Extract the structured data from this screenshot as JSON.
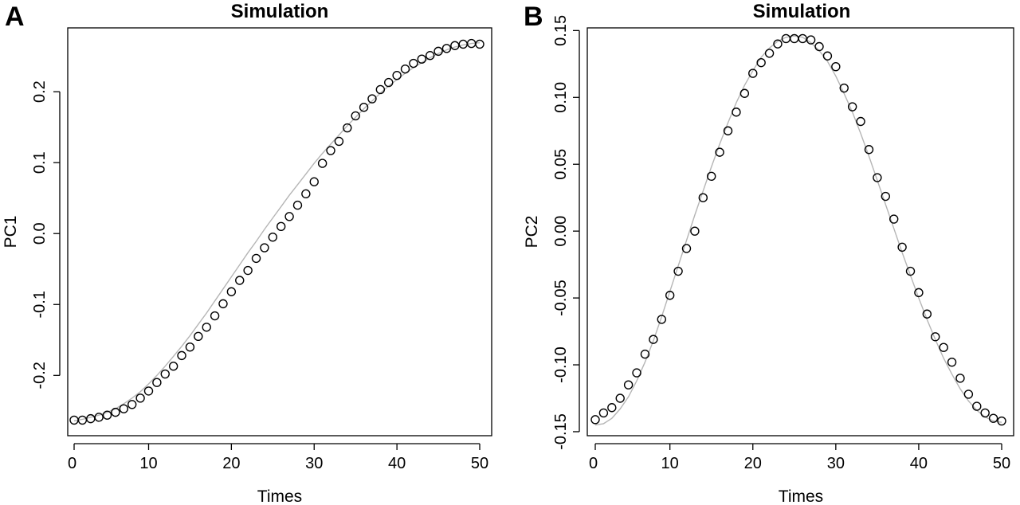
{
  "chart_data": [
    {
      "panel": "A",
      "type": "scatter",
      "title": "Simulation",
      "xlabel": "Times",
      "ylabel": "PC1",
      "xlim": [
        0,
        52
      ],
      "ylim": [
        -0.285,
        0.29
      ],
      "xticks": [
        10,
        20,
        30,
        40,
        50
      ],
      "xtick_labels": [
        "10",
        "20",
        "30",
        "40",
        "50"
      ],
      "yticks": [
        -0.2,
        -0.1,
        0.0,
        0.1,
        0.2
      ],
      "ytick_labels": [
        "-0.2",
        "-0.1",
        "0.0",
        "0.1",
        "0.2"
      ],
      "grid": false,
      "line_color": "#b5b5b5",
      "point_color": "#000000",
      "x": [
        1,
        2,
        3,
        4,
        5,
        6,
        7,
        8,
        9,
        10,
        11,
        12,
        13,
        14,
        15,
        16,
        17,
        18,
        19,
        20,
        21,
        22,
        23,
        24,
        25,
        26,
        27,
        28,
        29,
        30,
        31,
        32,
        33,
        34,
        35,
        36,
        37,
        38,
        39,
        40,
        41,
        42,
        43,
        44,
        45,
        46,
        47,
        48,
        49,
        50
      ],
      "series": [
        {
          "values": [
            -0.263,
            -0.263,
            -0.261,
            -0.259,
            -0.256,
            -0.252,
            -0.247,
            -0.241,
            -0.232,
            -0.222,
            -0.21,
            -0.198,
            -0.187,
            -0.172,
            -0.16,
            -0.145,
            -0.132,
            -0.116,
            -0.099,
            -0.082,
            -0.066,
            -0.052,
            -0.035,
            -0.02,
            -0.005,
            0.01,
            0.024,
            0.04,
            0.056,
            0.073,
            0.099,
            0.117,
            0.13,
            0.149,
            0.166,
            0.178,
            0.19,
            0.203,
            0.213,
            0.223,
            0.232,
            0.24,
            0.246,
            0.251,
            0.257,
            0.261,
            0.265,
            0.267,
            0.268,
            0.267
          ]
        },
        {
          "type": "line",
          "values": [
            -0.264,
            -0.262,
            -0.259,
            -0.256,
            -0.252,
            -0.247,
            -0.24,
            -0.232,
            -0.223,
            -0.212,
            -0.2,
            -0.187,
            -0.173,
            -0.159,
            -0.144,
            -0.128,
            -0.112,
            -0.095,
            -0.078,
            -0.061,
            -0.044,
            -0.027,
            -0.011,
            0.006,
            0.022,
            0.038,
            0.054,
            0.069,
            0.084,
            0.099,
            0.113,
            0.126,
            0.139,
            0.152,
            0.164,
            0.176,
            0.187,
            0.198,
            0.208,
            0.217,
            0.226,
            0.234,
            0.241,
            0.248,
            0.254,
            0.259,
            0.263,
            0.266,
            0.268,
            0.269
          ]
        }
      ]
    },
    {
      "panel": "B",
      "type": "scatter",
      "title": "Simulation",
      "xlabel": "Times",
      "ylabel": "PC2",
      "xlim": [
        0,
        52
      ],
      "ylim": [
        -0.153,
        0.152
      ],
      "xticks": [
        10,
        20,
        30,
        40,
        50
      ],
      "xtick_labels": [
        "10",
        "20",
        "30",
        "40",
        "50"
      ],
      "yticks": [
        -0.15,
        -0.1,
        -0.05,
        0.0,
        0.05,
        0.1,
        0.15
      ],
      "ytick_labels": [
        "-0.15",
        "-0.10",
        "-0.05",
        "0.00",
        "0.05",
        "0.10",
        "0.15"
      ],
      "grid": false,
      "line_color": "#b5b5b5",
      "point_color": "#000000",
      "x": [
        1,
        2,
        3,
        4,
        5,
        6,
        7,
        8,
        9,
        10,
        11,
        12,
        13,
        14,
        15,
        16,
        17,
        18,
        19,
        20,
        21,
        22,
        23,
        24,
        25,
        26,
        27,
        28,
        29,
        30,
        31,
        32,
        33,
        34,
        35,
        36,
        37,
        38,
        39,
        40,
        41,
        42,
        43,
        44,
        45,
        46,
        47,
        48,
        49,
        50
      ],
      "series": [
        {
          "values": [
            -0.141,
            -0.136,
            -0.132,
            -0.125,
            -0.115,
            -0.106,
            -0.092,
            -0.081,
            -0.066,
            -0.048,
            -0.03,
            -0.013,
            0.0,
            0.025,
            0.041,
            0.059,
            0.075,
            0.089,
            0.103,
            0.118,
            0.126,
            0.133,
            0.14,
            0.144,
            0.144,
            0.144,
            0.143,
            0.138,
            0.131,
            0.123,
            0.107,
            0.093,
            0.082,
            0.061,
            0.04,
            0.026,
            0.009,
            -0.012,
            -0.03,
            -0.046,
            -0.062,
            -0.079,
            -0.087,
            -0.098,
            -0.11,
            -0.122,
            -0.131,
            -0.136,
            -0.14,
            -0.142
          ]
        },
        {
          "type": "line",
          "values": [
            -0.145,
            -0.144,
            -0.14,
            -0.133,
            -0.124,
            -0.112,
            -0.098,
            -0.082,
            -0.064,
            -0.045,
            -0.026,
            -0.007,
            0.012,
            0.03,
            0.048,
            0.065,
            0.081,
            0.096,
            0.109,
            0.12,
            0.13,
            0.137,
            0.142,
            0.145,
            0.146,
            0.145,
            0.141,
            0.135,
            0.127,
            0.116,
            0.103,
            0.089,
            0.073,
            0.056,
            0.038,
            0.02,
            0.002,
            -0.016,
            -0.033,
            -0.05,
            -0.066,
            -0.081,
            -0.095,
            -0.107,
            -0.118,
            -0.127,
            -0.134,
            -0.139,
            -0.142,
            -0.143
          ]
        }
      ]
    }
  ]
}
